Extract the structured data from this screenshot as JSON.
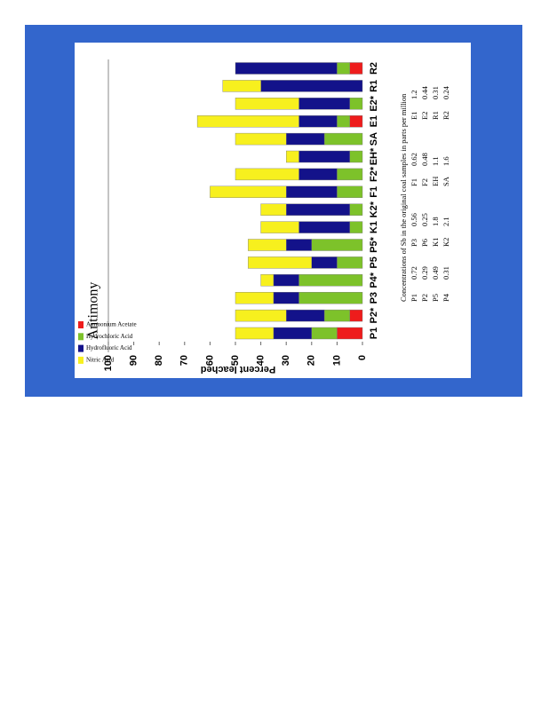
{
  "chart_data": {
    "type": "stacked_bar",
    "title": "Antimony",
    "ylabel": "Percent leached",
    "categories": [
      "P1",
      "P2*",
      "P3",
      "P4*",
      "P5",
      "P5*",
      "K1",
      "K2*",
      "F1",
      "F2*",
      "EH*",
      "SA",
      "E1",
      "E2*",
      "R1",
      "R2"
    ],
    "series": [
      {
        "name": "Ammonium Acetate",
        "color": "#ee1c1c",
        "values": [
          10,
          5,
          0,
          0,
          0,
          0,
          0,
          0,
          0,
          0,
          0,
          0,
          5,
          0,
          0,
          5
        ]
      },
      {
        "name": "Hydrochloric Acid",
        "color": "#7dc22a",
        "values": [
          10,
          10,
          25,
          25,
          10,
          20,
          5,
          5,
          10,
          10,
          5,
          15,
          5,
          5,
          0,
          5
        ]
      },
      {
        "name": "Hydrofluoric Acid",
        "color": "#13128a",
        "values": [
          15,
          15,
          10,
          10,
          10,
          10,
          20,
          25,
          20,
          15,
          20,
          15,
          15,
          20,
          40,
          40
        ]
      },
      {
        "name": "Nitric Acid",
        "color": "#f7f01e",
        "values": [
          15,
          20,
          15,
          5,
          25,
          15,
          15,
          10,
          30,
          25,
          5,
          20,
          40,
          25,
          15,
          0
        ]
      }
    ],
    "ylim": [
      0,
      100
    ],
    "yticks": [
      0,
      10,
      20,
      30,
      40,
      50,
      60,
      70,
      80,
      90,
      100
    ]
  },
  "table": {
    "title": "Concentrations of Sb in the original coal samples in parts per million",
    "rows": [
      [
        "P1",
        "0.72",
        "P3",
        "0.56",
        "F1",
        "0.62",
        "E1",
        "1.2"
      ],
      [
        "P2",
        "0.29",
        "P6",
        "0.25",
        "F2",
        "0.48",
        "E2",
        "0.44"
      ],
      [
        "P5",
        "0.49",
        "K1",
        "1.8",
        "EH",
        "1.1",
        "R1",
        "0.31"
      ],
      [
        "P4",
        "0.31",
        "K2",
        "2.1",
        "SA",
        "1.6",
        "R2",
        "0.24"
      ]
    ]
  }
}
